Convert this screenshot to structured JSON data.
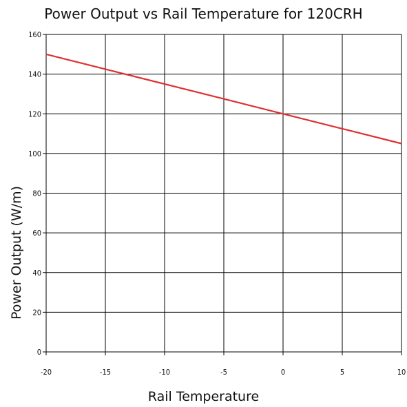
{
  "chart_data": {
    "type": "line",
    "title": "Power Output vs Rail Temperature for 120CRH",
    "xlabel": "Rail Temperature",
    "ylabel": "Power Output (W/m)",
    "xlim": [
      -20,
      10
    ],
    "ylim": [
      0,
      160
    ],
    "x_ticks": [
      -20,
      -15,
      -10,
      -5,
      0,
      5,
      10
    ],
    "y_ticks": [
      0,
      20,
      40,
      60,
      80,
      100,
      120,
      140,
      160
    ],
    "grid": true,
    "series": [
      {
        "color": "#e03030",
        "x": [
          -20,
          -15,
          -10,
          -5,
          0,
          5,
          10
        ],
        "y": [
          150,
          142.5,
          135,
          127.5,
          120,
          112.5,
          105
        ]
      }
    ]
  }
}
